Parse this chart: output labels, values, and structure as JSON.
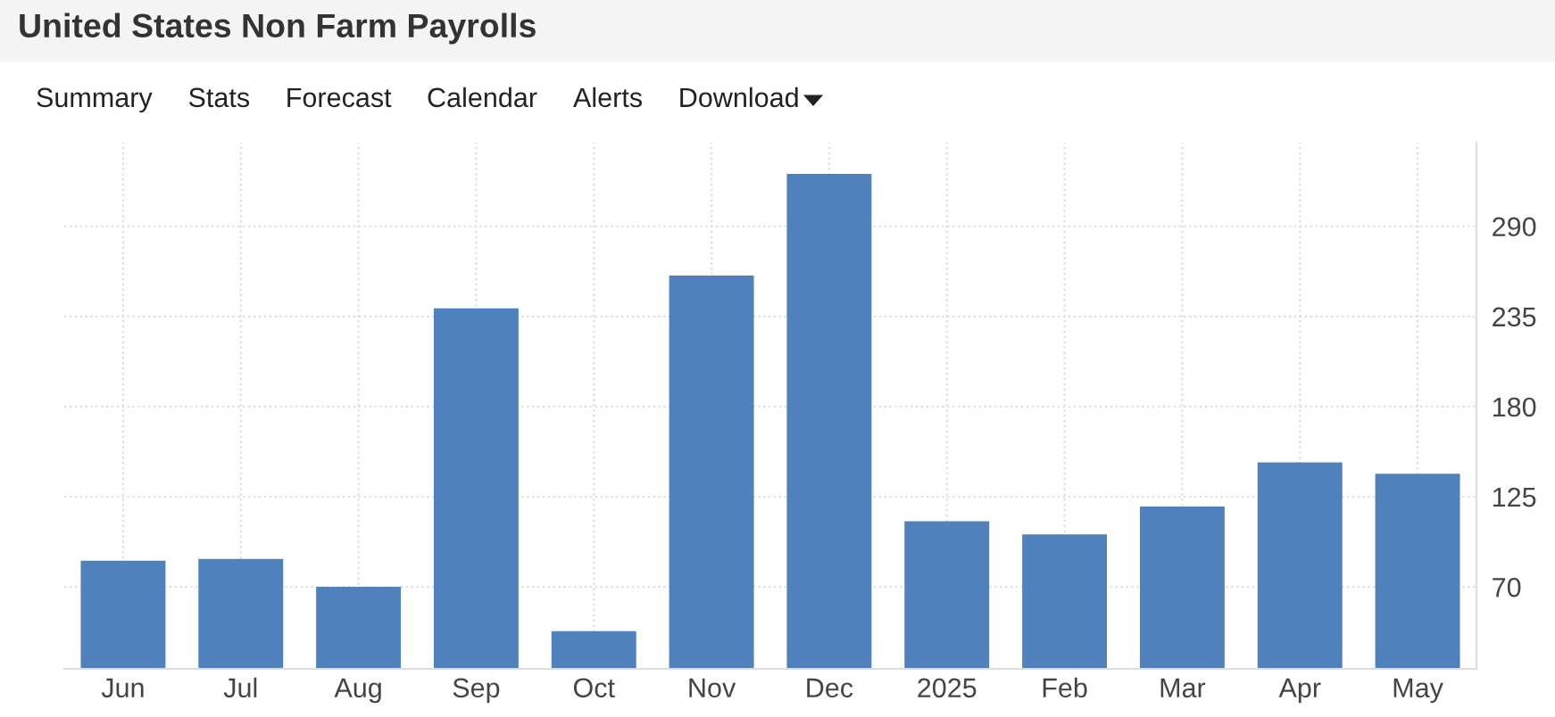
{
  "chart_data": {
    "type": "bar",
    "title": "United States Non Farm Payrolls",
    "annotations": [
      "Summary",
      "Stats",
      "Forecast",
      "Calendar",
      "Alerts",
      "Download"
    ],
    "categories": [
      "Jun",
      "Jul",
      "Aug",
      "Sep",
      "Oct",
      "Nov",
      "Dec",
      "2025",
      "Feb",
      "Mar",
      "Apr",
      "May"
    ],
    "values": [
      86,
      87,
      70,
      240,
      43,
      260,
      322,
      110,
      102,
      119,
      146,
      139
    ],
    "color": "#4f81bd",
    "ylim": [
      20,
      341
    ],
    "yticks": [
      70,
      125,
      180,
      235,
      290
    ],
    "grid": true
  }
}
